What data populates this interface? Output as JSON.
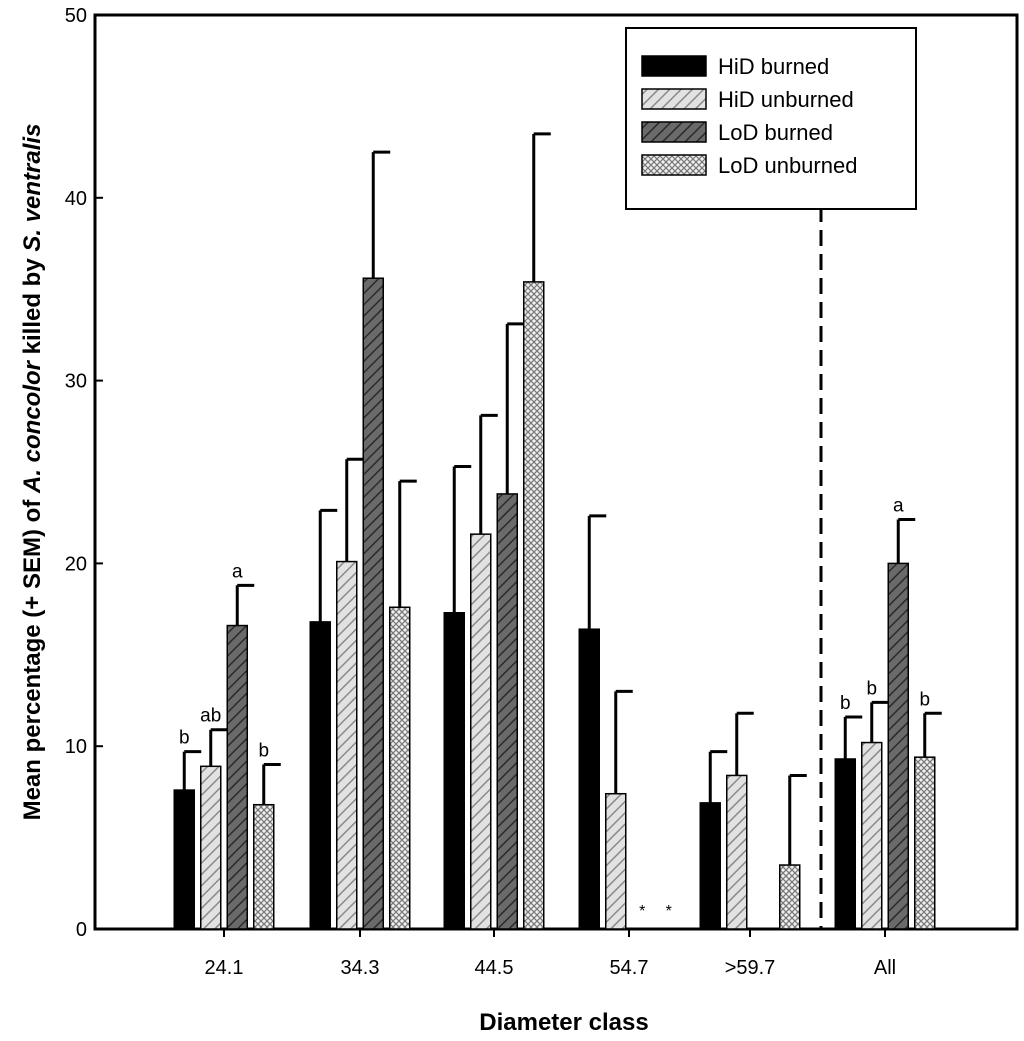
{
  "chart_data": {
    "type": "bar",
    "title": "",
    "xlabel": "Diameter class",
    "ylabel": {
      "pre": "Mean percentage (+ SEM) of ",
      "species1": "A. concolor",
      "mid": " killed by ",
      "species2": "S. ventralis"
    },
    "ylim": [
      0,
      50
    ],
    "yticks": [
      "0",
      "10",
      "20",
      "30",
      "40",
      "50"
    ],
    "grid": false,
    "legend_position": "top-right",
    "categories": [
      "24.1",
      "34.3",
      "44.5",
      "54.7",
      ">59.7",
      "All"
    ],
    "series": [
      {
        "name": "HiD burned",
        "pattern": "solid",
        "color": "#000000",
        "values": [
          7.6,
          16.8,
          17.3,
          16.4,
          6.9,
          9.3
        ],
        "sem": [
          2.1,
          6.1,
          8.0,
          6.2,
          2.8,
          2.3
        ],
        "letters": [
          "b",
          "",
          "",
          "",
          "",
          "b"
        ]
      },
      {
        "name": "HiD unburned",
        "pattern": "light-diagonal",
        "color": "#c0c0c0",
        "values": [
          8.9,
          20.1,
          21.6,
          7.4,
          8.4,
          10.2
        ],
        "sem": [
          2.0,
          5.6,
          6.5,
          5.6,
          3.4,
          2.2
        ],
        "letters": [
          "ab",
          "",
          "",
          "",
          "",
          "b"
        ]
      },
      {
        "name": "LoD burned",
        "pattern": "dark-diagonal",
        "color": "#555555",
        "values": [
          16.6,
          35.6,
          23.8,
          0,
          0,
          20.0
        ],
        "sem": [
          2.2,
          6.9,
          9.3,
          null,
          null,
          2.4
        ],
        "letters": [
          "a",
          "",
          "",
          "",
          "",
          "a"
        ]
      },
      {
        "name": "LoD unburned",
        "pattern": "crosshatch",
        "color": "#d8d8d8",
        "values": [
          6.8,
          17.6,
          35.4,
          0,
          3.5,
          9.4
        ],
        "sem": [
          2.2,
          6.9,
          8.1,
          null,
          4.9,
          2.4
        ],
        "letters": [
          "b",
          "",
          "",
          "",
          "",
          "b"
        ]
      }
    ],
    "annotations": [
      {
        "text": "*",
        "category": "54.7",
        "series": "LoD burned"
      },
      {
        "text": "*",
        "category": "54.7",
        "series": "LoD unburned"
      }
    ],
    "divider": {
      "style": "dashed",
      "between": [
        ">59.7",
        "All"
      ]
    }
  }
}
